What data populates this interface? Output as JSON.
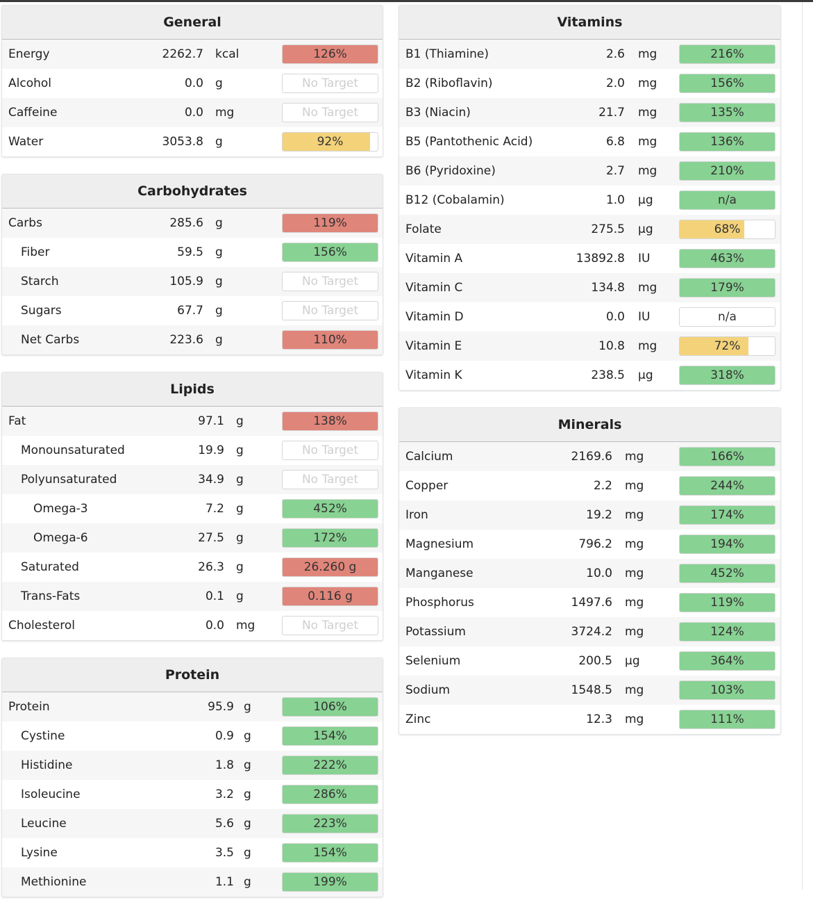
{
  "colors": {
    "red": "#e0857a",
    "green": "#88d293",
    "yellow": "#f3d27a"
  },
  "left_panels": [
    {
      "title": "General",
      "rows": [
        {
          "name": "Energy",
          "amount": "2262.7",
          "unit": "kcal",
          "target": "126%",
          "status": "red",
          "fill": 1
        },
        {
          "name": "Alcohol",
          "amount": "0.0",
          "unit": "g",
          "target": "No Target",
          "status": "none",
          "fill": 0
        },
        {
          "name": "Caffeine",
          "amount": "0.0",
          "unit": "mg",
          "target": "No Target",
          "status": "none",
          "fill": 0
        },
        {
          "name": "Water",
          "amount": "3053.8",
          "unit": "g",
          "target": "92%",
          "status": "yellow",
          "fill": 0.92
        }
      ]
    },
    {
      "title": "Carbohydrates",
      "rows": [
        {
          "name": "Carbs",
          "amount": "285.6",
          "unit": "g",
          "target": "119%",
          "status": "red",
          "fill": 1,
          "indent": 0
        },
        {
          "name": "Fiber",
          "amount": "59.5",
          "unit": "g",
          "target": "156%",
          "status": "green",
          "fill": 1,
          "indent": 1
        },
        {
          "name": "Starch",
          "amount": "105.9",
          "unit": "g",
          "target": "No Target",
          "status": "none",
          "fill": 0,
          "indent": 1
        },
        {
          "name": "Sugars",
          "amount": "67.7",
          "unit": "g",
          "target": "No Target",
          "status": "none",
          "fill": 0,
          "indent": 1
        },
        {
          "name": "Net Carbs",
          "amount": "223.6",
          "unit": "g",
          "target": "110%",
          "status": "red",
          "fill": 1,
          "indent": 1
        }
      ]
    },
    {
      "title": "Lipids",
      "rows": [
        {
          "name": "Fat",
          "amount": "97.1",
          "unit": "g",
          "target": "138%",
          "status": "red",
          "fill": 1,
          "indent": 0
        },
        {
          "name": "Monounsaturated",
          "amount": "19.9",
          "unit": "g",
          "target": "No Target",
          "status": "none",
          "fill": 0,
          "indent": 1
        },
        {
          "name": "Polyunsaturated",
          "amount": "34.9",
          "unit": "g",
          "target": "No Target",
          "status": "none",
          "fill": 0,
          "indent": 1
        },
        {
          "name": "Omega-3",
          "amount": "7.2",
          "unit": "g",
          "target": "452%",
          "status": "green",
          "fill": 1,
          "indent": 2
        },
        {
          "name": "Omega-6",
          "amount": "27.5",
          "unit": "g",
          "target": "172%",
          "status": "green",
          "fill": 1,
          "indent": 2
        },
        {
          "name": "Saturated",
          "amount": "26.3",
          "unit": "g",
          "target": "26.260 g",
          "status": "red",
          "fill": 1,
          "indent": 1
        },
        {
          "name": "Trans-Fats",
          "amount": "0.1",
          "unit": "g",
          "target": "0.116 g",
          "status": "red",
          "fill": 1,
          "indent": 1
        },
        {
          "name": "Cholesterol",
          "amount": "0.0",
          "unit": "mg",
          "target": "No Target",
          "status": "none",
          "fill": 0,
          "indent": 0
        }
      ]
    },
    {
      "title": "Protein",
      "rows": [
        {
          "name": "Protein",
          "amount": "95.9",
          "unit": "g",
          "target": "106%",
          "status": "green",
          "fill": 1,
          "indent": 0
        },
        {
          "name": "Cystine",
          "amount": "0.9",
          "unit": "g",
          "target": "154%",
          "status": "green",
          "fill": 1,
          "indent": 1
        },
        {
          "name": "Histidine",
          "amount": "1.8",
          "unit": "g",
          "target": "222%",
          "status": "green",
          "fill": 1,
          "indent": 1
        },
        {
          "name": "Isoleucine",
          "amount": "3.2",
          "unit": "g",
          "target": "286%",
          "status": "green",
          "fill": 1,
          "indent": 1
        },
        {
          "name": "Leucine",
          "amount": "5.6",
          "unit": "g",
          "target": "223%",
          "status": "green",
          "fill": 1,
          "indent": 1
        },
        {
          "name": "Lysine",
          "amount": "3.5",
          "unit": "g",
          "target": "154%",
          "status": "green",
          "fill": 1,
          "indent": 1
        },
        {
          "name": "Methionine",
          "amount": "1.1",
          "unit": "g",
          "target": "199%",
          "status": "green",
          "fill": 1,
          "indent": 1
        }
      ]
    }
  ],
  "right_panels": [
    {
      "title": "Vitamins",
      "rows": [
        {
          "name": "B1 (Thiamine)",
          "amount": "2.6",
          "unit": "mg",
          "target": "216%",
          "status": "green",
          "fill": 1
        },
        {
          "name": "B2 (Riboflavin)",
          "amount": "2.0",
          "unit": "mg",
          "target": "156%",
          "status": "green",
          "fill": 1
        },
        {
          "name": "B3 (Niacin)",
          "amount": "21.7",
          "unit": "mg",
          "target": "135%",
          "status": "green",
          "fill": 1
        },
        {
          "name": "B5 (Pantothenic Acid)",
          "amount": "6.8",
          "unit": "mg",
          "target": "136%",
          "status": "green",
          "fill": 1
        },
        {
          "name": "B6 (Pyridoxine)",
          "amount": "2.7",
          "unit": "mg",
          "target": "210%",
          "status": "green",
          "fill": 1
        },
        {
          "name": "B12 (Cobalamin)",
          "amount": "1.0",
          "unit": "µg",
          "target": "n/a",
          "status": "green",
          "fill": 1
        },
        {
          "name": "Folate",
          "amount": "275.5",
          "unit": "µg",
          "target": "68%",
          "status": "yellow",
          "fill": 0.68
        },
        {
          "name": "Vitamin A",
          "amount": "13892.8",
          "unit": "IU",
          "target": "463%",
          "status": "green",
          "fill": 1
        },
        {
          "name": "Vitamin C",
          "amount": "134.8",
          "unit": "mg",
          "target": "179%",
          "status": "green",
          "fill": 1
        },
        {
          "name": "Vitamin D",
          "amount": "0.0",
          "unit": "IU",
          "target": "n/a",
          "status": "empty",
          "fill": 0
        },
        {
          "name": "Vitamin E",
          "amount": "10.8",
          "unit": "mg",
          "target": "72%",
          "status": "yellow",
          "fill": 0.72
        },
        {
          "name": "Vitamin K",
          "amount": "238.5",
          "unit": "µg",
          "target": "318%",
          "status": "green",
          "fill": 1
        }
      ]
    },
    {
      "title": "Minerals",
      "rows": [
        {
          "name": "Calcium",
          "amount": "2169.6",
          "unit": "mg",
          "target": "166%",
          "status": "green",
          "fill": 1
        },
        {
          "name": "Copper",
          "amount": "2.2",
          "unit": "mg",
          "target": "244%",
          "status": "green",
          "fill": 1
        },
        {
          "name": "Iron",
          "amount": "19.2",
          "unit": "mg",
          "target": "174%",
          "status": "green",
          "fill": 1
        },
        {
          "name": "Magnesium",
          "amount": "796.2",
          "unit": "mg",
          "target": "194%",
          "status": "green",
          "fill": 1
        },
        {
          "name": "Manganese",
          "amount": "10.0",
          "unit": "mg",
          "target": "452%",
          "status": "green",
          "fill": 1
        },
        {
          "name": "Phosphorus",
          "amount": "1497.6",
          "unit": "mg",
          "target": "119%",
          "status": "green",
          "fill": 1
        },
        {
          "name": "Potassium",
          "amount": "3724.2",
          "unit": "mg",
          "target": "124%",
          "status": "green",
          "fill": 1
        },
        {
          "name": "Selenium",
          "amount": "200.5",
          "unit": "µg",
          "target": "364%",
          "status": "green",
          "fill": 1
        },
        {
          "name": "Sodium",
          "amount": "1548.5",
          "unit": "mg",
          "target": "103%",
          "status": "green",
          "fill": 1
        },
        {
          "name": "Zinc",
          "amount": "12.3",
          "unit": "mg",
          "target": "111%",
          "status": "green",
          "fill": 1
        }
      ]
    }
  ]
}
